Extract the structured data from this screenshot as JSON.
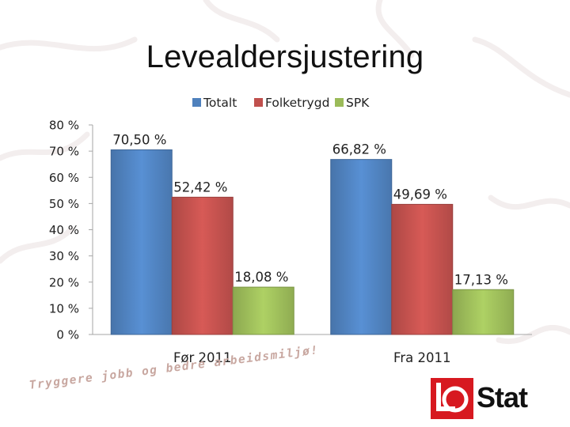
{
  "slide": {
    "title": "Levealdersjustering",
    "slogan": "Tryggere jobb og bedre arbeidsmiljø!",
    "logo_text": "Stat"
  },
  "colors": {
    "accent_red": "#d71920",
    "slogan": "#c8a7a0"
  },
  "chart_data": {
    "type": "bar",
    "title": "",
    "xlabel": "",
    "ylabel": "",
    "categories": [
      "Før 2011",
      "Fra 2011"
    ],
    "series": [
      {
        "name": "Totalt",
        "values": [
          70.5,
          66.82
        ],
        "labels": [
          "70,50 %",
          "66,82 %"
        ],
        "color": "#4f81bd"
      },
      {
        "name": "Folketrygd",
        "values": [
          52.42,
          49.69
        ],
        "labels": [
          "52,42 %",
          "49,69 %"
        ],
        "color": "#c0504d"
      },
      {
        "name": "SPK",
        "values": [
          18.08,
          17.13
        ],
        "labels": [
          "18,08 %",
          "17,13 %"
        ],
        "color": "#9bbb59"
      }
    ],
    "ylim": [
      0,
      80
    ],
    "yticks": [
      0,
      10,
      20,
      30,
      40,
      50,
      60,
      70,
      80
    ],
    "ytick_labels": [
      "0 %",
      "10 %",
      "20 %",
      "30 %",
      "40 %",
      "50 %",
      "60 %",
      "70 %",
      "80 %"
    ],
    "grid": false,
    "legend_position": "top"
  }
}
